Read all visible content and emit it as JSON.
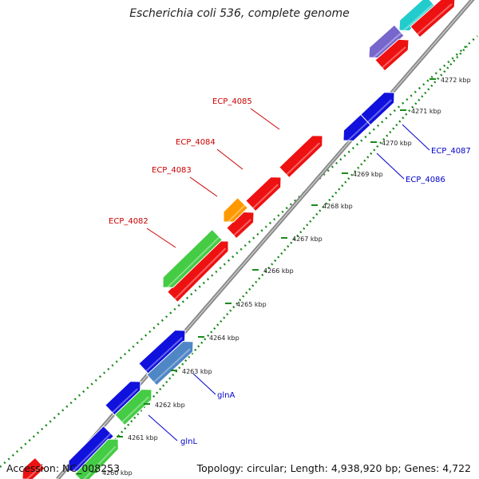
{
  "title": "Escherichia coli 536, complete genome",
  "footer": {
    "accession": "Accession: NC_008253",
    "topology": "Topology: circular; Length: 4,938,920 bp; Genes: 4,722"
  },
  "colors": {
    "backbone": "#8a8a8a",
    "dots": "#1a8a1a",
    "red_gene": "#ee1111",
    "blue_gene": "#1111dd",
    "green_gene": "#44cc44",
    "orange_gene": "#ff9900",
    "steelblue_gene": "#4f86c6",
    "cyan_gene": "#22cccc",
    "purple_gene": "#7766cc",
    "red_label": "#cc0000",
    "blue_label": "#0000cc"
  },
  "ticks": [
    "4260 kbp",
    "4261 kbp",
    "4262 kbp",
    "4263 kbp",
    "4264 kbp",
    "4265 kbp",
    "4266 kbp",
    "4267 kbp",
    "4268 kbp",
    "4269 kbp",
    "4270 kbp",
    "4271 kbp",
    "4272 kbp"
  ],
  "gene_labels": [
    {
      "text": "ECP_4085",
      "color": "red"
    },
    {
      "text": "ECP_4084",
      "color": "red"
    },
    {
      "text": "ECP_4083",
      "color": "red"
    },
    {
      "text": "ECP_4082",
      "color": "red"
    },
    {
      "text": "ECP_4087",
      "color": "blue"
    },
    {
      "text": "ECP_4086",
      "color": "blue"
    },
    {
      "text": "glnA",
      "color": "blue"
    },
    {
      "text": "glnL",
      "color": "blue"
    }
  ]
}
